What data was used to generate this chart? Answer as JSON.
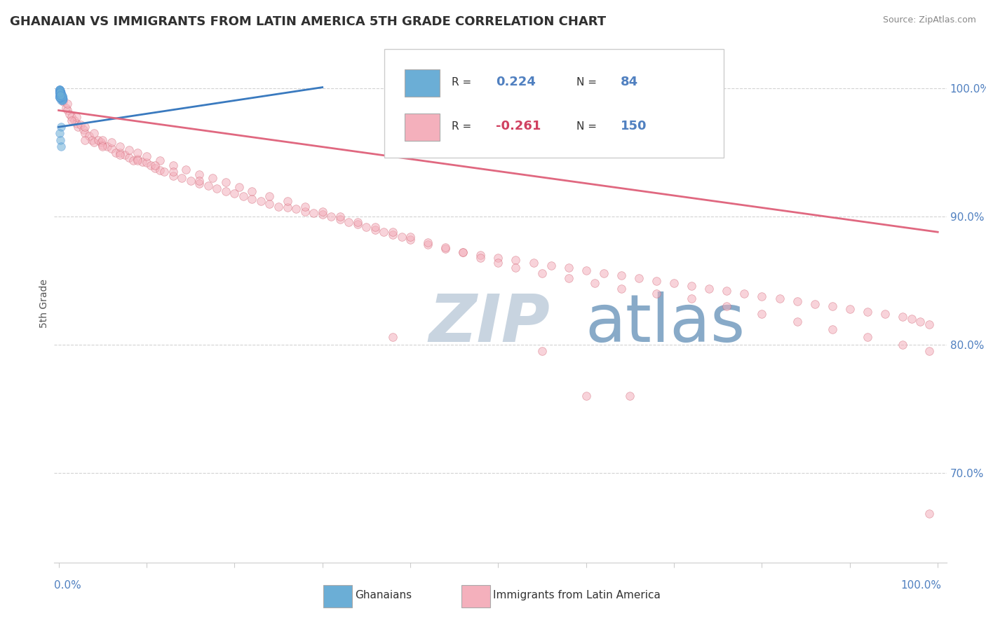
{
  "title": "GHANAIAN VS IMMIGRANTS FROM LATIN AMERICA 5TH GRADE CORRELATION CHART",
  "source": "Source: ZipAtlas.com",
  "ylabel": "5th Grade",
  "legend_items": [
    {
      "label": "Ghanaians",
      "color": "#a8c4e0",
      "R": 0.224,
      "N": 84
    },
    {
      "label": "Immigrants from Latin America",
      "color": "#f4b8c4",
      "R": -0.261,
      "N": 150
    }
  ],
  "blue_scatter": {
    "x": [
      0.001,
      0.002,
      0.003,
      0.001,
      0.004,
      0.002,
      0.005,
      0.003,
      0.002,
      0.001,
      0.003,
      0.002,
      0.004,
      0.001,
      0.003,
      0.002,
      0.001,
      0.003,
      0.002,
      0.004,
      0.001,
      0.003,
      0.002,
      0.001,
      0.004,
      0.002,
      0.003,
      0.001,
      0.002,
      0.003,
      0.001,
      0.002,
      0.004,
      0.001,
      0.003,
      0.002,
      0.001,
      0.003,
      0.002,
      0.004,
      0.001,
      0.002,
      0.003,
      0.001,
      0.002,
      0.003,
      0.004,
      0.001,
      0.002,
      0.003,
      0.001,
      0.002,
      0.003,
      0.001,
      0.002,
      0.003,
      0.004,
      0.001,
      0.002,
      0.003,
      0.001,
      0.002,
      0.001,
      0.002,
      0.003,
      0.001,
      0.002,
      0.003,
      0.001,
      0.002,
      0.003,
      0.001,
      0.002,
      0.003,
      0.001,
      0.002,
      0.003,
      0.004,
      0.001,
      0.002,
      0.003,
      0.001,
      0.002,
      0.003
    ],
    "y": [
      0.998,
      0.997,
      0.996,
      0.995,
      0.994,
      0.993,
      0.992,
      0.991,
      0.995,
      0.998,
      0.997,
      0.994,
      0.993,
      0.996,
      0.992,
      0.997,
      0.999,
      0.995,
      0.993,
      0.991,
      0.998,
      0.994,
      0.996,
      0.997,
      0.992,
      0.998,
      0.995,
      0.993,
      0.997,
      0.994,
      0.999,
      0.996,
      0.993,
      0.997,
      0.995,
      0.998,
      0.994,
      0.996,
      0.993,
      0.991,
      0.997,
      0.995,
      0.993,
      0.998,
      0.996,
      0.994,
      0.992,
      0.999,
      0.997,
      0.995,
      0.993,
      0.998,
      0.996,
      0.994,
      0.997,
      0.995,
      0.993,
      0.998,
      0.996,
      0.994,
      0.999,
      0.997,
      0.993,
      0.996,
      0.994,
      0.998,
      0.995,
      0.993,
      0.997,
      0.996,
      0.994,
      0.999,
      0.997,
      0.995,
      0.993,
      0.998,
      0.996,
      0.994,
      0.997,
      0.995,
      0.97,
      0.965,
      0.96,
      0.955
    ],
    "color": "#6baed6",
    "edge_color": "#4a90d9",
    "alpha": 0.55,
    "size": 70
  },
  "pink_scatter": {
    "x": [
      0.005,
      0.008,
      0.01,
      0.012,
      0.015,
      0.018,
      0.02,
      0.022,
      0.025,
      0.028,
      0.03,
      0.035,
      0.038,
      0.04,
      0.045,
      0.048,
      0.05,
      0.055,
      0.06,
      0.065,
      0.07,
      0.075,
      0.08,
      0.085,
      0.09,
      0.095,
      0.1,
      0.105,
      0.11,
      0.115,
      0.12,
      0.13,
      0.14,
      0.15,
      0.16,
      0.17,
      0.18,
      0.19,
      0.2,
      0.21,
      0.22,
      0.23,
      0.24,
      0.25,
      0.26,
      0.27,
      0.28,
      0.29,
      0.3,
      0.31,
      0.32,
      0.33,
      0.34,
      0.35,
      0.36,
      0.37,
      0.38,
      0.39,
      0.4,
      0.42,
      0.44,
      0.46,
      0.48,
      0.5,
      0.52,
      0.54,
      0.56,
      0.58,
      0.6,
      0.62,
      0.64,
      0.66,
      0.68,
      0.7,
      0.72,
      0.74,
      0.76,
      0.78,
      0.8,
      0.82,
      0.84,
      0.86,
      0.88,
      0.9,
      0.92,
      0.94,
      0.96,
      0.97,
      0.98,
      0.99,
      0.01,
      0.02,
      0.03,
      0.04,
      0.05,
      0.06,
      0.07,
      0.08,
      0.09,
      0.1,
      0.115,
      0.13,
      0.145,
      0.16,
      0.175,
      0.19,
      0.205,
      0.22,
      0.24,
      0.26,
      0.28,
      0.3,
      0.32,
      0.34,
      0.36,
      0.38,
      0.4,
      0.42,
      0.44,
      0.46,
      0.48,
      0.5,
      0.52,
      0.55,
      0.58,
      0.61,
      0.64,
      0.68,
      0.72,
      0.76,
      0.8,
      0.84,
      0.88,
      0.92,
      0.96,
      0.99,
      0.015,
      0.03,
      0.05,
      0.07,
      0.09,
      0.11,
      0.13,
      0.16,
      0.38,
      0.55,
      0.6,
      0.65,
      0.99
    ],
    "y": [
      0.99,
      0.985,
      0.983,
      0.98,
      0.978,
      0.975,
      0.973,
      0.97,
      0.972,
      0.968,
      0.965,
      0.963,
      0.96,
      0.958,
      0.96,
      0.958,
      0.956,
      0.955,
      0.953,
      0.95,
      0.95,
      0.948,
      0.946,
      0.944,
      0.945,
      0.943,
      0.942,
      0.94,
      0.938,
      0.936,
      0.935,
      0.932,
      0.93,
      0.928,
      0.926,
      0.924,
      0.922,
      0.92,
      0.918,
      0.916,
      0.914,
      0.912,
      0.91,
      0.908,
      0.907,
      0.906,
      0.904,
      0.903,
      0.902,
      0.9,
      0.898,
      0.896,
      0.894,
      0.892,
      0.89,
      0.888,
      0.886,
      0.884,
      0.882,
      0.878,
      0.875,
      0.872,
      0.87,
      0.868,
      0.866,
      0.864,
      0.862,
      0.86,
      0.858,
      0.856,
      0.854,
      0.852,
      0.85,
      0.848,
      0.846,
      0.844,
      0.842,
      0.84,
      0.838,
      0.836,
      0.834,
      0.832,
      0.83,
      0.828,
      0.826,
      0.824,
      0.822,
      0.82,
      0.818,
      0.816,
      0.988,
      0.978,
      0.97,
      0.965,
      0.96,
      0.958,
      0.955,
      0.952,
      0.95,
      0.947,
      0.944,
      0.94,
      0.937,
      0.933,
      0.93,
      0.927,
      0.923,
      0.92,
      0.916,
      0.912,
      0.908,
      0.904,
      0.9,
      0.896,
      0.892,
      0.888,
      0.884,
      0.88,
      0.876,
      0.872,
      0.868,
      0.864,
      0.86,
      0.856,
      0.852,
      0.848,
      0.844,
      0.84,
      0.836,
      0.83,
      0.824,
      0.818,
      0.812,
      0.806,
      0.8,
      0.795,
      0.975,
      0.96,
      0.955,
      0.948,
      0.944,
      0.94,
      0.935,
      0.928,
      0.806,
      0.795,
      0.76,
      0.76,
      0.668
    ],
    "color": "#f4b0bc",
    "edge_color": "#d06070",
    "alpha": 0.55,
    "size": 70
  },
  "blue_trend": {
    "x_start": 0.0,
    "x_end": 0.3,
    "y_start": 0.97,
    "y_end": 1.001,
    "color": "#3a7abf",
    "linewidth": 2.0
  },
  "pink_trend": {
    "x_start": 0.0,
    "x_end": 1.0,
    "y_start": 0.983,
    "y_end": 0.888,
    "color": "#e06880",
    "linewidth": 2.0
  },
  "watermark_zip": "ZIP",
  "watermark_atlas": "atlas",
  "watermark_color_zip": "#c8d4e0",
  "watermark_color_atlas": "#88aac8",
  "background_color": "#ffffff",
  "grid_color": "#c8c8c8",
  "title_color": "#303030",
  "axis_color": "#5080c0",
  "ylim_min": 0.63,
  "ylim_max": 1.035,
  "xlim_min": -0.005,
  "xlim_max": 1.01
}
